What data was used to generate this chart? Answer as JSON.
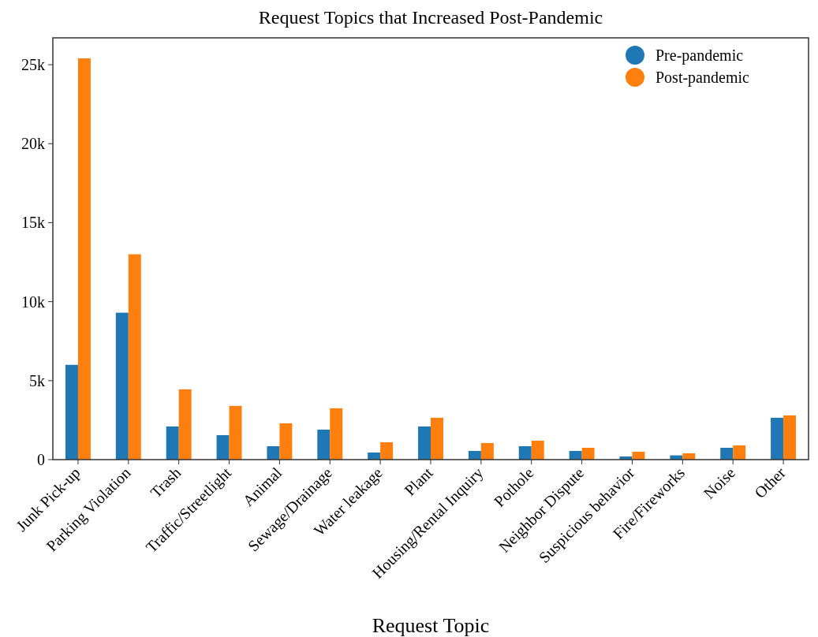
{
  "chart_data": {
    "type": "bar",
    "title": "Request Topics that Increased Post-Pandemic",
    "xlabel": "Request Topic",
    "categories": [
      "Junk Pick-up",
      "Parking Violation",
      "Trash",
      "Traffic/Streetlight",
      "Animal",
      "Sewage/Drainage",
      "Water leakage",
      "Plant",
      "Housing/Rental Inquiry",
      "Pothole",
      "Neighbor Dispute",
      "Suspicious behavior",
      "Fire/Fireworks",
      "Noise",
      "Other"
    ],
    "series": [
      {
        "name": "Pre-pandemic",
        "color": "#1f77b4",
        "values": [
          6000,
          9300,
          2100,
          1550,
          850,
          1900,
          450,
          2100,
          550,
          850,
          550,
          200,
          270,
          750,
          2650
        ]
      },
      {
        "name": "Post-pandemic",
        "color": "#ff7f0e",
        "values": [
          25400,
          13000,
          4450,
          3400,
          2300,
          3250,
          1100,
          2650,
          1050,
          1200,
          750,
          500,
          400,
          900,
          2800
        ]
      }
    ],
    "ylim": [
      0,
      26700
    ],
    "yticks": [
      {
        "value": 0,
        "label": "0"
      },
      {
        "value": 5000,
        "label": "5k"
      },
      {
        "value": 10000,
        "label": "10k"
      },
      {
        "value": 15000,
        "label": "15k"
      },
      {
        "value": 20000,
        "label": "20k"
      },
      {
        "value": 25000,
        "label": "25k"
      }
    ],
    "legend": "top right",
    "grid": false
  }
}
